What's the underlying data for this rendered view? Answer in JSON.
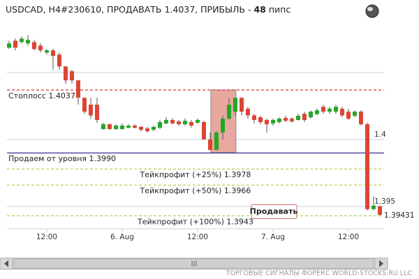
{
  "chart_data": {
    "type": "candlestick",
    "title": "USDCAD, H4#230610, ПРОДАВАТЬ 1.4037, ПРИБЫЛЬ -",
    "profit": 48,
    "profit_unit": "пипс",
    "up_color": "#22a822",
    "down_color": "#dd4433",
    "open": [
      1.40686,
      1.40738,
      1.40728,
      1.40718,
      1.40728,
      1.40702,
      1.4065,
      1.40666,
      1.40634,
      1.40546,
      1.4051,
      1.40442,
      1.40312,
      1.4026,
      1.4026,
      1.40078,
      1.40114,
      1.40078,
      1.40078,
      1.40088,
      1.40104,
      1.40094,
      1.40083,
      1.40073,
      1.40088,
      1.4012,
      1.40146,
      1.40135,
      1.40114,
      1.4013,
      1.40125,
      1.4013,
      1.4,
      1.39922,
      1.40052,
      1.40156,
      1.40208,
      1.40312,
      1.4023,
      1.4018,
      1.40166,
      1.40146,
      1.4012,
      1.4013,
      1.40161,
      1.40156,
      1.40146,
      1.40192,
      1.40166,
      1.4019,
      1.40244,
      1.40208,
      1.40208,
      1.4023,
      1.40208,
      1.40177,
      1.40208,
      1.40114,
      1.3948,
      1.39501
    ],
    "high": [
      1.40738,
      1.40754,
      1.4077,
      1.4078,
      1.40744,
      1.40718,
      1.40676,
      1.40676,
      1.4065,
      1.40546,
      1.4052,
      1.40442,
      1.40312,
      1.40312,
      1.40312,
      1.40125,
      1.4012,
      1.40114,
      1.4012,
      1.40114,
      1.40114,
      1.40104,
      1.40094,
      1.40104,
      1.40146,
      1.40166,
      1.40161,
      1.40146,
      1.40156,
      1.40146,
      1.40156,
      1.4014,
      1.40052,
      1.40062,
      1.40177,
      1.40312,
      1.40312,
      1.40312,
      1.40244,
      1.40192,
      1.4018,
      1.40156,
      1.40156,
      1.40166,
      1.40177,
      1.40166,
      1.40192,
      1.40208,
      1.40218,
      1.4023,
      1.4026,
      1.40244,
      1.4026,
      1.40244,
      1.4023,
      1.40218,
      1.40218,
      1.40125,
      1.39575,
      1.39506
    ],
    "low": [
      1.40676,
      1.40666,
      1.40718,
      1.40702,
      1.40666,
      1.4065,
      1.40634,
      1.4052,
      1.4052,
      1.40416,
      1.40416,
      1.4026,
      1.40192,
      1.40156,
      1.40125,
      1.40073,
      1.40073,
      1.40073,
      1.40073,
      1.40083,
      1.40083,
      1.40062,
      1.40052,
      1.40062,
      1.40078,
      1.40114,
      1.40114,
      1.40104,
      1.40104,
      1.40088,
      1.4012,
      1.4,
      1.39922,
      1.39922,
      1.4,
      1.40146,
      1.4018,
      1.4018,
      1.40156,
      1.4012,
      1.40114,
      1.40052,
      1.40104,
      1.4012,
      1.4013,
      1.40125,
      1.4014,
      1.4013,
      1.40156,
      1.4018,
      1.40192,
      1.40192,
      1.40192,
      1.40166,
      1.40146,
      1.40166,
      1.40104,
      1.3947,
      1.3947,
      1.39431
    ],
    "close": [
      1.40718,
      1.40686,
      1.40754,
      1.40744,
      1.40676,
      1.40666,
      1.40666,
      1.40624,
      1.40546,
      1.40442,
      1.40442,
      1.40312,
      1.40208,
      1.4018,
      1.40146,
      1.40114,
      1.40078,
      1.40104,
      1.40104,
      1.40104,
      1.40088,
      1.40073,
      1.40062,
      1.40094,
      1.4013,
      1.40146,
      1.4012,
      1.40114,
      1.4014,
      1.40104,
      1.40146,
      1.4,
      1.39922,
      1.40052,
      1.40156,
      1.4026,
      1.40312,
      1.40208,
      1.4018,
      1.40146,
      1.4013,
      1.40114,
      1.40146,
      1.40156,
      1.4014,
      1.40135,
      1.40177,
      1.40146,
      1.40208,
      1.40218,
      1.40208,
      1.4023,
      1.40244,
      1.4018,
      1.40156,
      1.40208,
      1.40114,
      1.3948,
      1.39506,
      1.39438
    ],
    "xlim": [
      -0.33,
      59.67
    ],
    "xticks": [
      {
        "value": 6,
        "label": "12:00"
      },
      {
        "value": 18,
        "label": "6. Aug"
      },
      {
        "value": 30,
        "label": "12:00"
      },
      {
        "value": 42,
        "label": "7. Aug"
      },
      {
        "value": 54,
        "label": "12:00"
      }
    ],
    "ylim": [
      1.39333,
      1.40938
    ],
    "yticks": [
      1.395,
      1.4
    ],
    "ygrid": [
      1.395,
      1.4,
      1.405
    ],
    "last_price": 1.39431,
    "highlight": {
      "xlim": [
        32.1,
        36.1
      ],
      "ylim": [
        1.399,
        1.4037
      ],
      "color": "#e8a8a0"
    },
    "levels": [
      {
        "label": "Стоплосс 1.4037",
        "value": 1.4037,
        "color": "#cc0000",
        "dashed": true,
        "align": "left"
      },
      {
        "label": "Продаем от уровня 1.3990",
        "value": 1.399,
        "color": "#000080",
        "dashed": false,
        "align": "left"
      },
      {
        "label": "Тейкпрофит (+25%) 1.3978",
        "value": 1.3978,
        "color": "#99cc33",
        "dashed": true,
        "align": "center"
      },
      {
        "label": "Тейкпрофит (+50%) 1.3966",
        "value": 1.3966,
        "color": "#99cc33",
        "dashed": true,
        "align": "center"
      },
      {
        "label": "Тейкпрофит (+100%) 1.3943",
        "value": 1.3943,
        "color": "#99cc33",
        "dashed": true,
        "align": "center"
      }
    ],
    "signal_label": "Продавать",
    "footer": "ТОРГОВЫЕ СИГНАЛЫ ФОРЕКС WORLD-STOCKS.RU LLC"
  }
}
